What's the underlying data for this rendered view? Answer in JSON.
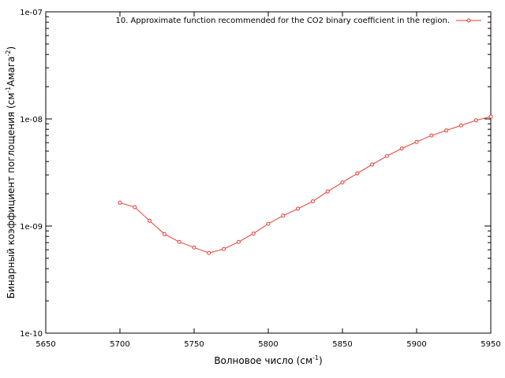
{
  "chart_data": {
    "type": "line",
    "title": "",
    "xlabel_base": "Волновое число (см",
    "xlabel_sup": "-1",
    "xlabel_tail": ")",
    "ylabel_base": "Бинарный коэффициент поглощения (см",
    "ylabel_sup1": "-1",
    "ylabel_mid": "Амага",
    "ylabel_sup2": "-2",
    "ylabel_tail": ")",
    "xlim": [
      5650,
      5950
    ],
    "ylim": [
      1e-10,
      1e-07
    ],
    "yscale": "log",
    "grid": false,
    "legend_position": "top-right",
    "x_ticks": [
      5650,
      5700,
      5750,
      5800,
      5850,
      5900,
      5950
    ],
    "x_tick_labels": [
      "5650",
      "5700",
      "5750",
      "5800",
      "5850",
      "5900",
      "5950"
    ],
    "y_ticks": [
      1e-10,
      1e-09,
      1e-08,
      1e-07
    ],
    "y_tick_labels": [
      "1e-10",
      "1e-09",
      "1e-08",
      "1e-07"
    ],
    "series": [
      {
        "name": "10. Approximate function recommended for the CO2 binary coefficient in the region.",
        "color": "#e8392e",
        "marker": "circle",
        "x": [
          5700,
          5710,
          5720,
          5730,
          5740,
          5750,
          5760,
          5770,
          5780,
          5790,
          5800,
          5810,
          5820,
          5830,
          5840,
          5850,
          5860,
          5870,
          5880,
          5890,
          5900,
          5910,
          5920,
          5930,
          5940,
          5950
        ],
        "y": [
          1.65e-09,
          1.5e-09,
          1.12e-09,
          8.4e-10,
          7.1e-10,
          6.3e-10,
          5.6e-10,
          6.1e-10,
          7.1e-10,
          8.5e-10,
          1.05e-09,
          1.25e-09,
          1.45e-09,
          1.7e-09,
          2.1e-09,
          2.55e-09,
          3.1e-09,
          3.75e-09,
          4.5e-09,
          5.3e-09,
          6.1e-09,
          7e-09,
          7.8e-09,
          8.7e-09,
          9.7e-09,
          1.05e-08
        ]
      }
    ]
  }
}
